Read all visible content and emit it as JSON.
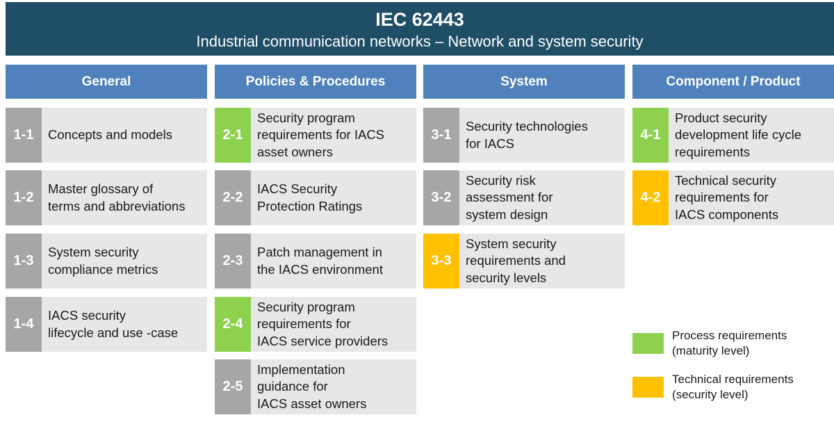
{
  "header": {
    "title": "IEC 62443",
    "subtitle": "Industrial communication networks  – Network and system security"
  },
  "colors": {
    "banner": "#1f4e67",
    "column_header": "#4f81bd",
    "card_bg": "#e6e7e8",
    "gray": "#a6a6a6",
    "green": "#8ed14f",
    "yellow": "#ffc000"
  },
  "columns": [
    {
      "title": "General",
      "items": [
        {
          "num": "1-1",
          "label": "Concepts and models",
          "color": "gray"
        },
        {
          "num": "1-2",
          "label": "Master glossary of\nterms and abbreviations",
          "color": "gray"
        },
        {
          "num": "1-3",
          "label": "System security\ncompliance metrics",
          "color": "gray"
        },
        {
          "num": "1-4",
          "label": "IACS security\nlifecycle and use -case",
          "color": "gray"
        }
      ]
    },
    {
      "title": "Policies & Procedures",
      "items": [
        {
          "num": "2-1",
          "label": "Security program\nrequirements for IACS\nasset owners",
          "color": "green"
        },
        {
          "num": "2-2",
          "label": "IACS Security\nProtection Ratings",
          "color": "gray"
        },
        {
          "num": "2-3",
          "label": "Patch management in\nthe IACS environment",
          "color": "gray"
        },
        {
          "num": "2-4",
          "label": "Security program\nrequirements for\nIACS service providers",
          "color": "green"
        },
        {
          "num": "2-5",
          "label": "Implementation\nguidance for\nIACS asset owners",
          "color": "gray"
        }
      ]
    },
    {
      "title": "System",
      "items": [
        {
          "num": "3-1",
          "label": "Security technologies\nfor IACS",
          "color": "gray"
        },
        {
          "num": "3-2",
          "label": "Security risk\nassessment for\nsystem design",
          "color": "gray"
        },
        {
          "num": "3-3",
          "label": "System security\nrequirements and\nsecurity levels",
          "color": "yellow"
        }
      ]
    },
    {
      "title": "Component / Product",
      "items": [
        {
          "num": "4-1",
          "label": "Product security\ndevelopment life cycle\nrequirements",
          "color": "green"
        },
        {
          "num": "4-2",
          "label": "Technical security\nrequirements for\nIACS components",
          "color": "yellow"
        }
      ]
    }
  ],
  "legend": [
    {
      "label": "Process requirements\n(maturity level)",
      "color": "green"
    },
    {
      "label": "Technical requirements\n(security level)",
      "color": "yellow"
    }
  ]
}
